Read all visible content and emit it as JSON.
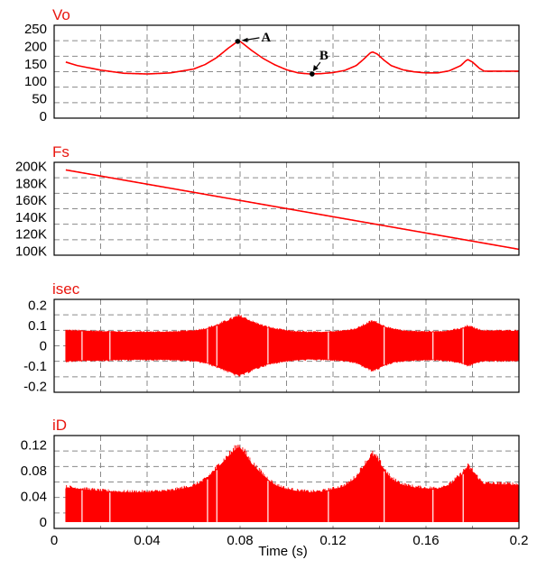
{
  "chart_data": [
    {
      "type": "line",
      "title": "Vo",
      "xlim": [
        0,
        0.2
      ],
      "ylim": [
        -5,
        260
      ],
      "yticks": [
        0,
        50,
        100,
        150,
        200,
        250
      ],
      "yticklabels": [
        "0",
        "50",
        "100",
        "150",
        "200",
        "250"
      ],
      "grid": true,
      "color": "#ff0000",
      "series": [
        {
          "x": [
            0.005,
            0.01,
            0.02,
            0.03,
            0.04,
            0.05,
            0.06,
            0.065,
            0.07,
            0.075,
            0.079,
            0.08,
            0.082,
            0.085,
            0.09,
            0.095,
            0.1,
            0.105,
            0.11,
            0.115,
            0.12,
            0.125,
            0.13,
            0.133,
            0.136,
            0.137,
            0.139,
            0.142,
            0.145,
            0.15,
            0.155,
            0.16,
            0.165,
            0.17,
            0.175,
            0.177,
            0.178,
            0.18,
            0.183,
            0.185,
            0.2
          ],
          "y": [
            155,
            145,
            132,
            123,
            121,
            124,
            135,
            148,
            168,
            195,
            214,
            214,
            204,
            188,
            165,
            147,
            133,
            124,
            121,
            122,
            125,
            131,
            145,
            162,
            181,
            184,
            178,
            160,
            145,
            133,
            127,
            124,
            124,
            130,
            145,
            158,
            162,
            155,
            137,
            129,
            129
          ]
        }
      ],
      "annotations": [
        {
          "label": "A",
          "x": 0.079,
          "y": 214
        },
        {
          "label": "B",
          "x": 0.111,
          "y": 121
        }
      ]
    },
    {
      "type": "line",
      "title": "Fs",
      "xlim": [
        0,
        0.2
      ],
      "ylim": [
        95000,
        205000
      ],
      "yticks": [
        100000,
        120000,
        140000,
        160000,
        180000,
        200000
      ],
      "yticklabels": [
        "100K",
        "120K",
        "140K",
        "160K",
        "180K",
        "200K"
      ],
      "grid": true,
      "color": "#ff0000",
      "series": [
        {
          "x": [
            0.005,
            0.2
          ],
          "y": [
            196000,
            102000
          ]
        }
      ]
    },
    {
      "type": "area",
      "title": "isec",
      "xlim": [
        0,
        0.2
      ],
      "ylim": [
        -0.23,
        0.23
      ],
      "yticks": [
        -0.2,
        -0.1,
        0,
        0.1,
        0.2
      ],
      "yticklabels": [
        "-0.2",
        "-0.1",
        "0",
        "0.1",
        "0.2"
      ],
      "grid": true,
      "color": "#ff0000",
      "symmetric_envelope": true,
      "series": [
        {
          "x": [
            0.005,
            0.01,
            0.02,
            0.03,
            0.04,
            0.05,
            0.06,
            0.065,
            0.07,
            0.075,
            0.079,
            0.08,
            0.082,
            0.085,
            0.09,
            0.095,
            0.1,
            0.105,
            0.11,
            0.115,
            0.12,
            0.125,
            0.13,
            0.133,
            0.136,
            0.137,
            0.139,
            0.142,
            0.145,
            0.15,
            0.155,
            0.16,
            0.165,
            0.17,
            0.175,
            0.177,
            0.178,
            0.18,
            0.183,
            0.185,
            0.2
          ],
          "y": [
            0.082,
            0.08,
            0.077,
            0.074,
            0.073,
            0.074,
            0.08,
            0.09,
            0.11,
            0.135,
            0.155,
            0.155,
            0.146,
            0.128,
            0.105,
            0.09,
            0.08,
            0.075,
            0.072,
            0.073,
            0.076,
            0.08,
            0.09,
            0.108,
            0.126,
            0.13,
            0.122,
            0.104,
            0.09,
            0.08,
            0.077,
            0.075,
            0.075,
            0.08,
            0.09,
            0.1,
            0.105,
            0.097,
            0.084,
            0.08,
            0.08
          ]
        }
      ]
    },
    {
      "type": "area",
      "title": "iD",
      "xlabel": "Time (s)",
      "xlim": [
        0,
        0.2
      ],
      "ylim": [
        -0.01,
        0.135
      ],
      "xticks": [
        0,
        0.04,
        0.08,
        0.12,
        0.16,
        0.2
      ],
      "xticklabels": [
        "0",
        "0.04",
        "0.08",
        "0.12",
        "0.16",
        "0.2"
      ],
      "yticks": [
        0,
        0.04,
        0.08,
        0.12
      ],
      "yticklabels": [
        "0",
        "0.04",
        "0.08",
        "0.12"
      ],
      "grid": true,
      "color": "#ff0000",
      "series": [
        {
          "x": [
            0.005,
            0.01,
            0.02,
            0.03,
            0.04,
            0.05,
            0.06,
            0.065,
            0.07,
            0.075,
            0.079,
            0.08,
            0.082,
            0.085,
            0.09,
            0.095,
            0.1,
            0.105,
            0.11,
            0.115,
            0.12,
            0.125,
            0.13,
            0.133,
            0.136,
            0.137,
            0.139,
            0.142,
            0.145,
            0.15,
            0.155,
            0.16,
            0.165,
            0.17,
            0.175,
            0.177,
            0.178,
            0.18,
            0.183,
            0.185,
            0.2
          ],
          "y": [
            0.058,
            0.056,
            0.052,
            0.05,
            0.05,
            0.052,
            0.06,
            0.07,
            0.09,
            0.11,
            0.125,
            0.125,
            0.115,
            0.098,
            0.078,
            0.062,
            0.055,
            0.052,
            0.05,
            0.051,
            0.055,
            0.06,
            0.075,
            0.092,
            0.108,
            0.112,
            0.105,
            0.088,
            0.072,
            0.062,
            0.058,
            0.056,
            0.056,
            0.062,
            0.078,
            0.088,
            0.092,
            0.085,
            0.07,
            0.064,
            0.062
          ]
        }
      ]
    }
  ]
}
